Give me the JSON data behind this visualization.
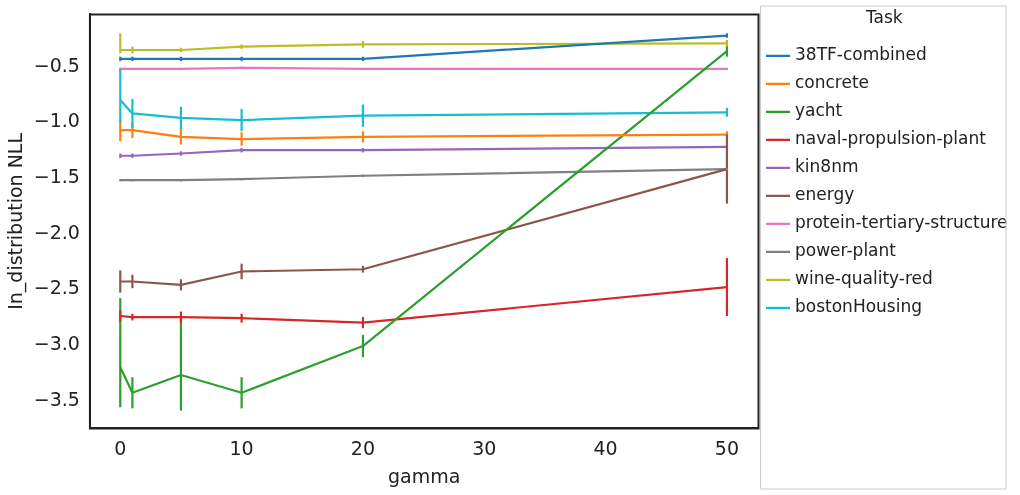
{
  "chart_data": {
    "type": "line",
    "xlabel": "gamma",
    "ylabel": "In_distribution NLL",
    "legend_title": "Task",
    "legend": "right",
    "grid": false,
    "marker": "none",
    "line_style": "solid",
    "xlim": [
      -2.5,
      52.6
    ],
    "xticks": [
      0,
      10,
      20,
      30,
      40,
      50
    ],
    "ylim": [
      -3.75,
      -0.03
    ],
    "yticks": [
      {
        "value": -3.5,
        "label": "−3.5"
      },
      {
        "value": -3.0,
        "label": "−3.0"
      },
      {
        "value": -2.5,
        "label": "−2.5"
      },
      {
        "value": -2.0,
        "label": "−2.0"
      },
      {
        "value": -1.5,
        "label": "−1.5"
      },
      {
        "value": -1.0,
        "label": "−1.0"
      },
      {
        "value": -0.5,
        "label": "−0.5"
      }
    ],
    "x": [
      0,
      1,
      5,
      10,
      20,
      50
    ],
    "series": [
      {
        "name": "38TF-combined",
        "color": "#1f77b4",
        "values": [
          -0.43,
          -0.43,
          -0.43,
          -0.43,
          -0.43,
          -0.22
        ],
        "errors": [
          0.02,
          0.02,
          0.02,
          0.02,
          0.02,
          0.02
        ]
      },
      {
        "name": "concrete",
        "color": "#ff7f0e",
        "values": [
          -1.07,
          -1.07,
          -1.13,
          -1.15,
          -1.13,
          -1.11
        ],
        "errors": [
          0.1,
          0.07,
          0.07,
          0.06,
          0.05,
          0.03
        ]
      },
      {
        "name": "yacht",
        "color": "#2ca02c",
        "values": [
          -3.2,
          -3.43,
          -3.27,
          -3.43,
          -3.01,
          -0.36
        ],
        "errors": [
          [
            -3.56,
            -2.58
          ],
          0.14,
          [
            -3.59,
            -2.74
          ],
          0.14,
          0.1,
          0.05
        ]
      },
      {
        "name": "naval-propulsion-plant",
        "color": "#d62728",
        "values": [
          -2.74,
          -2.75,
          -2.75,
          -2.76,
          -2.8,
          -2.48
        ],
        "errors": [
          0.05,
          0.03,
          0.05,
          0.04,
          0.05,
          0.26
        ]
      },
      {
        "name": "kin8nm",
        "color": "#9467bd",
        "values": [
          -1.3,
          -1.3,
          -1.28,
          -1.25,
          -1.25,
          -1.22
        ],
        "errors": [
          0.02,
          0.02,
          0.02,
          0.02,
          0.02,
          0.02
        ]
      },
      {
        "name": "energy",
        "color": "#8c564b",
        "values": [
          -2.43,
          -2.43,
          -2.46,
          -2.34,
          -2.32,
          -1.42
        ],
        "errors": [
          0.1,
          0.06,
          0.05,
          0.07,
          0.03,
          0.31
        ]
      },
      {
        "name": "protein-tertiary-structure",
        "color": "#e377c2",
        "values": [
          -0.52,
          -0.52,
          -0.52,
          -0.51,
          -0.52,
          -0.52
        ],
        "errors": [
          0.01,
          0.01,
          0.01,
          0.01,
          0.01,
          0.01
        ]
      },
      {
        "name": "power-plant",
        "color": "#7f7f7f",
        "values": [
          -1.52,
          -1.52,
          -1.52,
          -1.51,
          -1.48,
          -1.42
        ],
        "errors": [
          0.01,
          0.01,
          0.01,
          0.01,
          0.01,
          0.01
        ]
      },
      {
        "name": "wine-quality-red",
        "color": "#bcbd22",
        "values": [
          -0.35,
          -0.35,
          -0.35,
          -0.32,
          -0.3,
          -0.29
        ],
        "errors": [
          [
            -0.38,
            -0.2
          ],
          0.03,
          0.02,
          0.02,
          0.03,
          0.03
        ]
      },
      {
        "name": "bostonHousing",
        "color": "#17becf",
        "values": [
          -0.8,
          -0.92,
          -0.96,
          -0.98,
          -0.94,
          -0.91
        ],
        "errors": [
          [
            -1.0,
            -0.52
          ],
          0.13,
          0.1,
          0.1,
          0.1,
          0.04
        ]
      }
    ]
  }
}
